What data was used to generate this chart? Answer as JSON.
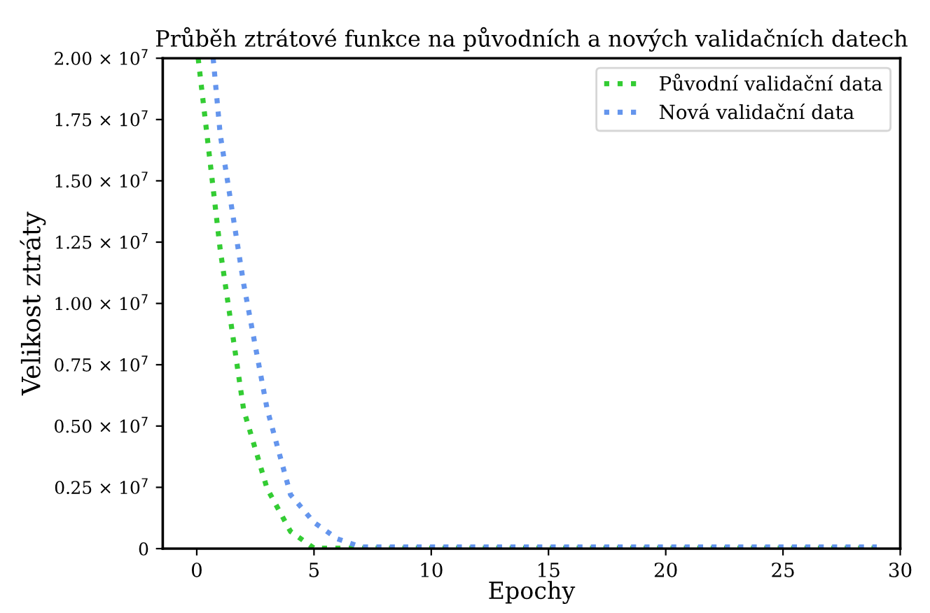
{
  "chart_data": {
    "type": "line",
    "title": "Průběh ztrátové funkce na původních a nových validačních datech",
    "xlabel": "Epochy",
    "ylabel": "Velikost ztráty",
    "series": [
      {
        "name": "Původní validační data",
        "color": "#33cc33",
        "x": [
          0.06,
          1,
          2,
          3,
          4,
          5,
          6,
          7,
          8,
          9,
          10,
          11,
          12,
          13,
          14,
          15,
          16,
          17,
          18,
          19,
          20,
          21,
          22,
          23,
          24,
          25,
          26,
          27,
          28,
          29
        ],
        "values": [
          20000000,
          12200000,
          5660000,
          2450000,
          700000,
          20000,
          20000,
          20000,
          20000,
          20000,
          20000,
          20000,
          20000,
          20000,
          20000,
          20000,
          20000,
          20000,
          20000,
          20000,
          20000,
          20000,
          20000,
          20000,
          20000,
          20000,
          20000,
          20000,
          20000,
          20000
        ]
      },
      {
        "name": "Nová validační data",
        "color": "#6495ed",
        "x": [
          0.7,
          1,
          2,
          3,
          4,
          5,
          6,
          7,
          8,
          9,
          10,
          11,
          12,
          13,
          14,
          15,
          16,
          17,
          18,
          19,
          20,
          21,
          22,
          23,
          24,
          25,
          26,
          27,
          28,
          29
        ],
        "values": [
          20000000,
          16900000,
          10800000,
          5700000,
          2200000,
          1070000,
          400000,
          70000,
          70000,
          70000,
          70000,
          70000,
          70000,
          70000,
          70000,
          70000,
          70000,
          70000,
          70000,
          70000,
          70000,
          70000,
          70000,
          70000,
          70000,
          70000,
          70000,
          70000,
          70000,
          70000
        ]
      }
    ],
    "xlim": [
      -1.45,
      30.0
    ],
    "xticks": [
      0,
      5,
      10,
      15,
      20,
      25,
      30
    ],
    "ylim": [
      0,
      20000000
    ],
    "yticks": [
      0,
      {
        "value": 2500000,
        "label": "0.25 × 10$^{7}$"
      },
      {
        "value": 5000000,
        "label": "0.50 × 10$^{7}$"
      },
      {
        "value": 7500000,
        "label": "0.75 × 10$^{7}$"
      },
      {
        "value": 10000000,
        "label": "1.00 × 10$^{7}$"
      },
      {
        "value": 12500000,
        "label": "1.25 × 10$^{7}$"
      },
      {
        "value": 15000000,
        "label": "1.50 × 10$^{7}$"
      },
      {
        "value": 17500000,
        "label": "1.75 × 10$^{7}$"
      },
      {
        "value": 20000000,
        "label": "2.00 × 10$^{7}$"
      }
    ],
    "grid": false,
    "legend": "top right",
    "marker": "none",
    "line_style": "dotted"
  }
}
